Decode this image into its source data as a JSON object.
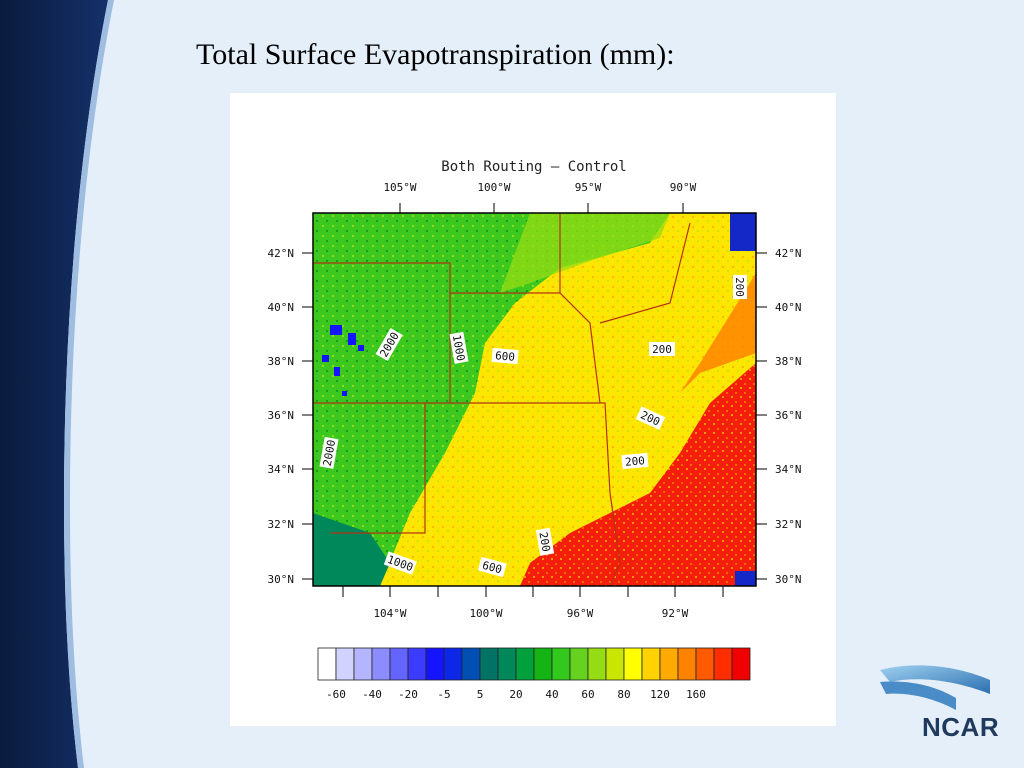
{
  "slide": {
    "title": "Total Surface Evapotranspiration (mm):",
    "logo_text": "NCAR"
  },
  "map": {
    "title": "Both Routing – Control",
    "top_axis_labels": [
      "105°W",
      "100°W",
      "95°W",
      "90°W"
    ],
    "bottom_axis_labels": [
      "104°W",
      "100°W",
      "96°W",
      "92°W"
    ],
    "left_axis_labels": [
      "42°N",
      "40°N",
      "38°N",
      "36°N",
      "34°N",
      "32°N",
      "30°N"
    ],
    "right_axis_labels": [
      "42°N",
      "40°N",
      "38°N",
      "36°N",
      "34°N",
      "32°N",
      "30°N"
    ],
    "contour_labels": [
      "200",
      "2000",
      "1000",
      "600",
      "200",
      "200",
      "200",
      "2000",
      "200",
      "1000",
      "600"
    ],
    "colorbar": {
      "colors": [
        "#ffffff",
        "#d2d2ff",
        "#b4b4ff",
        "#8c8cff",
        "#6464ff",
        "#3c3cff",
        "#1414ff",
        "#0c28e6",
        "#0050b4",
        "#007366",
        "#00875a",
        "#00a03c",
        "#14b414",
        "#32c81e",
        "#64d21e",
        "#96dc14",
        "#c8e600",
        "#ffff00",
        "#ffd200",
        "#ffaa00",
        "#ff8200",
        "#ff5a00",
        "#ff2d00",
        "#f00000"
      ],
      "tick_labels": [
        "-60",
        "-40",
        "-20",
        "-5",
        "5",
        "20",
        "40",
        "60",
        "80",
        "120",
        "160"
      ]
    },
    "regions": {
      "ocean_color": "#1428c8",
      "high_color": "#f51e0a",
      "mid_color": "#ffe600",
      "low_color": "#28b41e"
    }
  }
}
